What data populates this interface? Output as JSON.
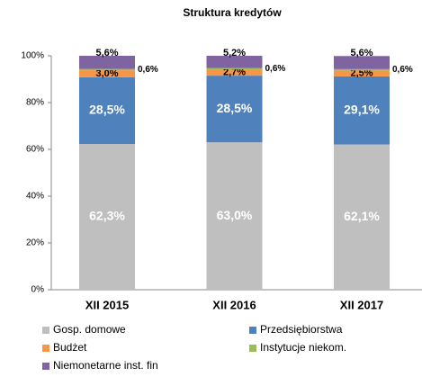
{
  "chart_data": {
    "type": "stacked_bar",
    "title": "Struktura kredytów",
    "categories": [
      "XII 2015",
      "XII 2016",
      "XII 2017"
    ],
    "series": [
      {
        "name": "Gosp. domowe",
        "color": "#BFBFBF",
        "values": [
          62.3,
          63.0,
          62.1
        ],
        "value_labels": [
          "62,3%",
          "63,0%",
          "62,1%"
        ]
      },
      {
        "name": "Przedsiębiorstwa",
        "color": "#4F81BD",
        "values": [
          28.5,
          28.5,
          29.1
        ],
        "value_labels": [
          "28,5%",
          "28,5%",
          "29,1%"
        ]
      },
      {
        "name": "Budżet",
        "color": "#F79646",
        "values": [
          3.0,
          2.7,
          2.5
        ],
        "value_labels": [
          "3,0%",
          "2,7%",
          "2,5%"
        ]
      },
      {
        "name": "Instytucje niekom.",
        "color": "#9BBB59",
        "values": [
          0.6,
          0.6,
          0.6
        ],
        "value_labels": [
          "0,6%",
          "0,6%",
          "0,6%"
        ]
      },
      {
        "name": "Niemonetarne inst. fin",
        "color": "#8064A2",
        "values": [
          5.6,
          5.2,
          5.6
        ],
        "value_labels": [
          "5,6%",
          "5,2%",
          "5,6%"
        ]
      }
    ],
    "ylim": [
      0,
      100
    ],
    "yticks": [
      {
        "value": 0,
        "label": "0%"
      },
      {
        "value": 20,
        "label": "20%"
      },
      {
        "value": 40,
        "label": "40%"
      },
      {
        "value": 60,
        "label": "60%"
      },
      {
        "value": 80,
        "label": "80%"
      },
      {
        "value": 100,
        "label": "100%"
      }
    ]
  }
}
